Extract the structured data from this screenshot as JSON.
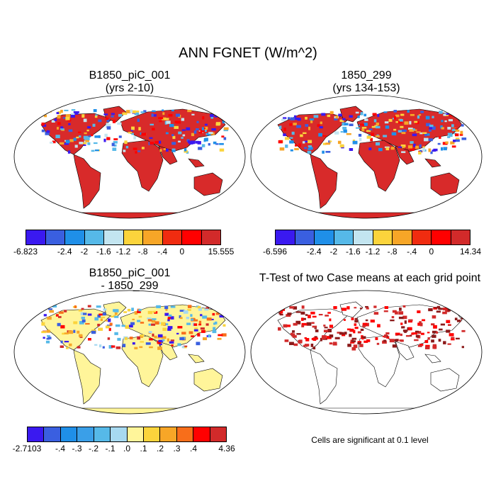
{
  "title": "ANN FGNET (W/m^2)",
  "panels": {
    "p1": {
      "title1": "B1850_piC_001",
      "title2": "(yrs 2-10)"
    },
    "p2": {
      "title1": "1850_299",
      "title2": "(yrs 134-153)"
    },
    "p3": {
      "title1": "B1850_piC_001",
      "title2": "- 1850_299"
    },
    "p4": {
      "title1": "T-Test of two Case means at each grid point"
    }
  },
  "colorbars": {
    "cb1": {
      "colors": [
        "#3a19f0",
        "#3a5fe0",
        "#1f8fe8",
        "#56b9e8",
        "#c3e5f0",
        "#fbd43c",
        "#f7a627",
        "#f02c10",
        "#ff0000",
        "#d22a2a"
      ],
      "labels": [
        "-6.823",
        "-2.4",
        "-2",
        "-1.6",
        "-1.2",
        "-.8",
        "-.4",
        "0",
        "15.555"
      ]
    },
    "cb2": {
      "colors": [
        "#3a19f0",
        "#3a5fe0",
        "#1f8fe8",
        "#56b9e8",
        "#c3e5f0",
        "#fbd43c",
        "#f7a627",
        "#f02c10",
        "#ff0000",
        "#d22a2a"
      ],
      "labels": [
        "-6.596",
        "-2.4",
        "-2",
        "-1.6",
        "-1.2",
        "-.8",
        "-.4",
        "0",
        "14.34"
      ]
    },
    "cb3": {
      "colors": [
        "#3a19f0",
        "#3a5fe0",
        "#1f8fe8",
        "#3a9fe8",
        "#56b9e8",
        "#a7d9f0",
        "#fff59a",
        "#fbd43c",
        "#f7a627",
        "#f86e1a",
        "#ff0000",
        "#d22a2a"
      ],
      "labels": [
        "-2.7103",
        "-.4",
        "-.3",
        "-.2",
        "-.1",
        ".0",
        ".1",
        ".2",
        ".3",
        ".4",
        "4.36"
      ]
    }
  },
  "note": "Cells are significant at 0.1 level"
}
